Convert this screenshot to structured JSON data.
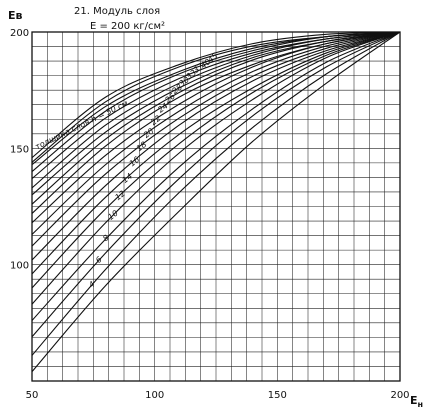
{
  "chart_data": {
    "type": "line",
    "title": "21. Модуль слоя",
    "subtitle": "E = 200 кг/см²",
    "xlabel": "E",
    "xlabel_sub": "н",
    "ylabel": "Eв",
    "xlim": [
      50,
      200
    ],
    "ylim": [
      50,
      200
    ],
    "x_ticks": [
      50,
      100,
      150,
      200
    ],
    "x_tick_labels": [
      "50",
      "100",
      "150",
      "200"
    ],
    "y_ticks": [
      100,
      150,
      200
    ],
    "y_tick_labels": [
      "100",
      "150",
      "200"
    ],
    "grid": true,
    "grid_minor_step": 6.25,
    "label_prefix": "толщина слоя h = 50 см",
    "series": [
      {
        "label": "",
        "points": [
          [
            50,
            54
          ],
          [
            80,
            91
          ],
          [
            110,
            123
          ],
          [
            140,
            153
          ],
          [
            170,
            178
          ],
          [
            200,
            200
          ]
        ]
      },
      {
        "label": "4",
        "points": [
          [
            50,
            61
          ],
          [
            80,
            98
          ],
          [
            110,
            131
          ],
          [
            140,
            159
          ],
          [
            170,
            182
          ],
          [
            200,
            200
          ]
        ]
      },
      {
        "label": "6",
        "points": [
          [
            50,
            69
          ],
          [
            80,
            105
          ],
          [
            110,
            137
          ],
          [
            140,
            164
          ],
          [
            170,
            185
          ],
          [
            200,
            200
          ]
        ]
      },
      {
        "label": "8",
        "points": [
          [
            50,
            76
          ],
          [
            80,
            111
          ],
          [
            110,
            142
          ],
          [
            140,
            167
          ],
          [
            170,
            187
          ],
          [
            200,
            200
          ]
        ]
      },
      {
        "label": "10",
        "points": [
          [
            50,
            83
          ],
          [
            80,
            118
          ],
          [
            110,
            148
          ],
          [
            140,
            171
          ],
          [
            170,
            189
          ],
          [
            200,
            200
          ]
        ]
      },
      {
        "label": "12",
        "points": [
          [
            50,
            90
          ],
          [
            80,
            124
          ],
          [
            110,
            152
          ],
          [
            140,
            174
          ],
          [
            170,
            190
          ],
          [
            200,
            200
          ]
        ]
      },
      {
        "label": "14",
        "points": [
          [
            50,
            96
          ],
          [
            80,
            129
          ],
          [
            110,
            156
          ],
          [
            140,
            176
          ],
          [
            170,
            191
          ],
          [
            200,
            200
          ]
        ]
      },
      {
        "label": "16",
        "points": [
          [
            50,
            102
          ],
          [
            80,
            134
          ],
          [
            110,
            160
          ],
          [
            140,
            179
          ],
          [
            170,
            192
          ],
          [
            200,
            200
          ]
        ]
      },
      {
        "label": "18",
        "points": [
          [
            50,
            108
          ],
          [
            80,
            139
          ],
          [
            110,
            163
          ],
          [
            140,
            181
          ],
          [
            170,
            193
          ],
          [
            200,
            200
          ]
        ]
      },
      {
        "label": "20",
        "points": [
          [
            50,
            113
          ],
          [
            80,
            143
          ],
          [
            110,
            166
          ],
          [
            140,
            183
          ],
          [
            170,
            194
          ],
          [
            200,
            200
          ]
        ]
      },
      {
        "label": "22",
        "points": [
          [
            50,
            118
          ],
          [
            80,
            147
          ],
          [
            110,
            169
          ],
          [
            140,
            185
          ],
          [
            170,
            195
          ],
          [
            200,
            200
          ]
        ]
      },
      {
        "label": "24",
        "points": [
          [
            50,
            122
          ],
          [
            80,
            151
          ],
          [
            110,
            172
          ],
          [
            140,
            186
          ],
          [
            170,
            195
          ],
          [
            200,
            200
          ]
        ]
      },
      {
        "label": "26",
        "points": [
          [
            50,
            126
          ],
          [
            80,
            154
          ],
          [
            110,
            174
          ],
          [
            140,
            188
          ],
          [
            170,
            196
          ],
          [
            200,
            200
          ]
        ]
      },
      {
        "label": "28",
        "points": [
          [
            50,
            130
          ],
          [
            80,
            157
          ],
          [
            110,
            176
          ],
          [
            140,
            189
          ],
          [
            170,
            196
          ],
          [
            200,
            200
          ]
        ]
      },
      {
        "label": "30",
        "points": [
          [
            50,
            133
          ],
          [
            80,
            160
          ],
          [
            110,
            178
          ],
          [
            140,
            190
          ],
          [
            170,
            197
          ],
          [
            200,
            200
          ]
        ]
      },
      {
        "label": "33",
        "points": [
          [
            50,
            137
          ],
          [
            80,
            163
          ],
          [
            110,
            180
          ],
          [
            140,
            191
          ],
          [
            170,
            197
          ],
          [
            200,
            200
          ]
        ]
      },
      {
        "label": "37",
        "points": [
          [
            50,
            140
          ],
          [
            80,
            166
          ],
          [
            110,
            182
          ],
          [
            140,
            192
          ],
          [
            170,
            198
          ],
          [
            200,
            200
          ]
        ]
      },
      {
        "label": "40",
        "points": [
          [
            50,
            143
          ],
          [
            80,
            168
          ],
          [
            110,
            183
          ],
          [
            140,
            193
          ],
          [
            170,
            198
          ],
          [
            200,
            200
          ]
        ]
      },
      {
        "label": "45",
        "points": [
          [
            50,
            144
          ],
          [
            80,
            170
          ],
          [
            110,
            185
          ],
          [
            140,
            194
          ],
          [
            170,
            198
          ],
          [
            200,
            200
          ]
        ]
      },
      {
        "label": "50",
        "points": [
          [
            50,
            146
          ],
          [
            80,
            172
          ],
          [
            110,
            186
          ],
          [
            140,
            195
          ],
          [
            170,
            199
          ],
          [
            200,
            200
          ]
        ]
      }
    ]
  }
}
